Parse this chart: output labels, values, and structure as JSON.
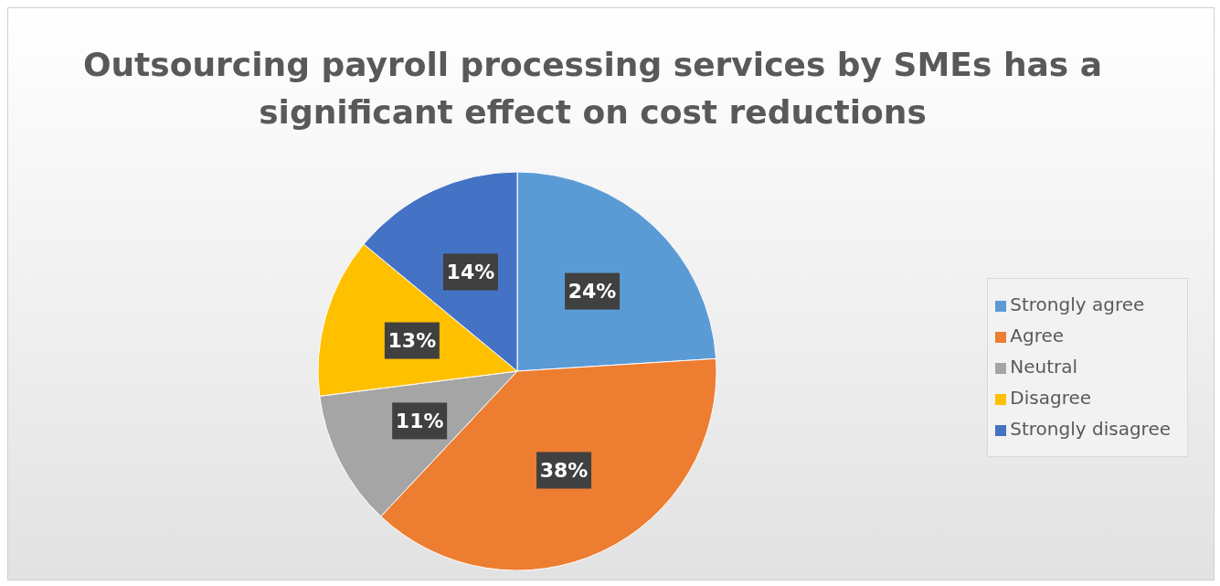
{
  "chart_data": {
    "type": "pie",
    "title": "Outsourcing payroll processing services by SMEs has a significant effect on cost reductions",
    "categories": [
      "Strongly agree",
      "Agree",
      "Neutral",
      "Disagree",
      "Strongly disagree"
    ],
    "values": [
      24,
      38,
      11,
      13,
      14
    ],
    "colors": [
      "#5b9bd5",
      "#ed7d31",
      "#a5a5a5",
      "#ffc000",
      "#4472c4"
    ],
    "value_labels": [
      "24%",
      "38%",
      "11%",
      "13%",
      "14%"
    ],
    "legend": "right"
  }
}
